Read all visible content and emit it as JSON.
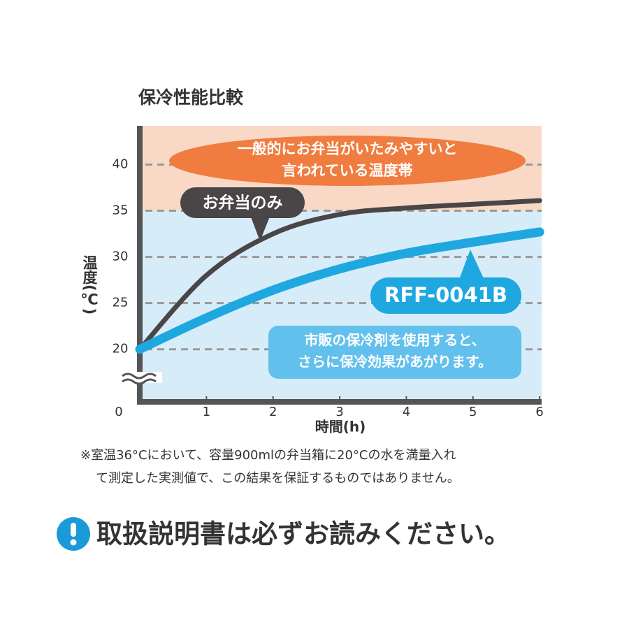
{
  "chart_data": {
    "type": "line",
    "title": "保冷性能比較",
    "y_label": "温度(℃)",
    "x_label": "時間(h)",
    "x": [
      0,
      1,
      2,
      3,
      4,
      5,
      6
    ],
    "series": [
      {
        "name": "お弁当のみ",
        "color": "#4a4546",
        "values": [
          20,
          28,
          32.5,
          34.6,
          35.3,
          35.7,
          36.1
        ]
      },
      {
        "name": "RFF-0041B",
        "color": "#1fa8e0",
        "values": [
          20,
          23.4,
          26.4,
          28.7,
          30.4,
          31.6,
          32.7
        ]
      }
    ],
    "xlim": [
      0,
      6.03
    ],
    "xticks": [
      0,
      1,
      2,
      3,
      4,
      5,
      6
    ],
    "ylim": [
      14.3,
      44.2
    ],
    "yticks": [
      20,
      25,
      30,
      35,
      40
    ],
    "grid": true,
    "danger_zone": {
      "from": 35,
      "color": "#f9d9c6",
      "lines": [
        "一般的にお弁当がいたみやすいと",
        "言われている温度帯"
      ]
    },
    "safe_color": "#d7ecf9",
    "note": [
      "市販の保冷剤を使用すると、",
      "さらに保冷効果があがります。"
    ],
    "footnote": [
      "※室温36°Cにおいて、容量900mlの弁当箱に20°Cの水を満量入れ",
      "て測定した実測値で、この結果を保証するものではありません。"
    ],
    "warning": "取扱説明書は必ずお読みください。"
  }
}
